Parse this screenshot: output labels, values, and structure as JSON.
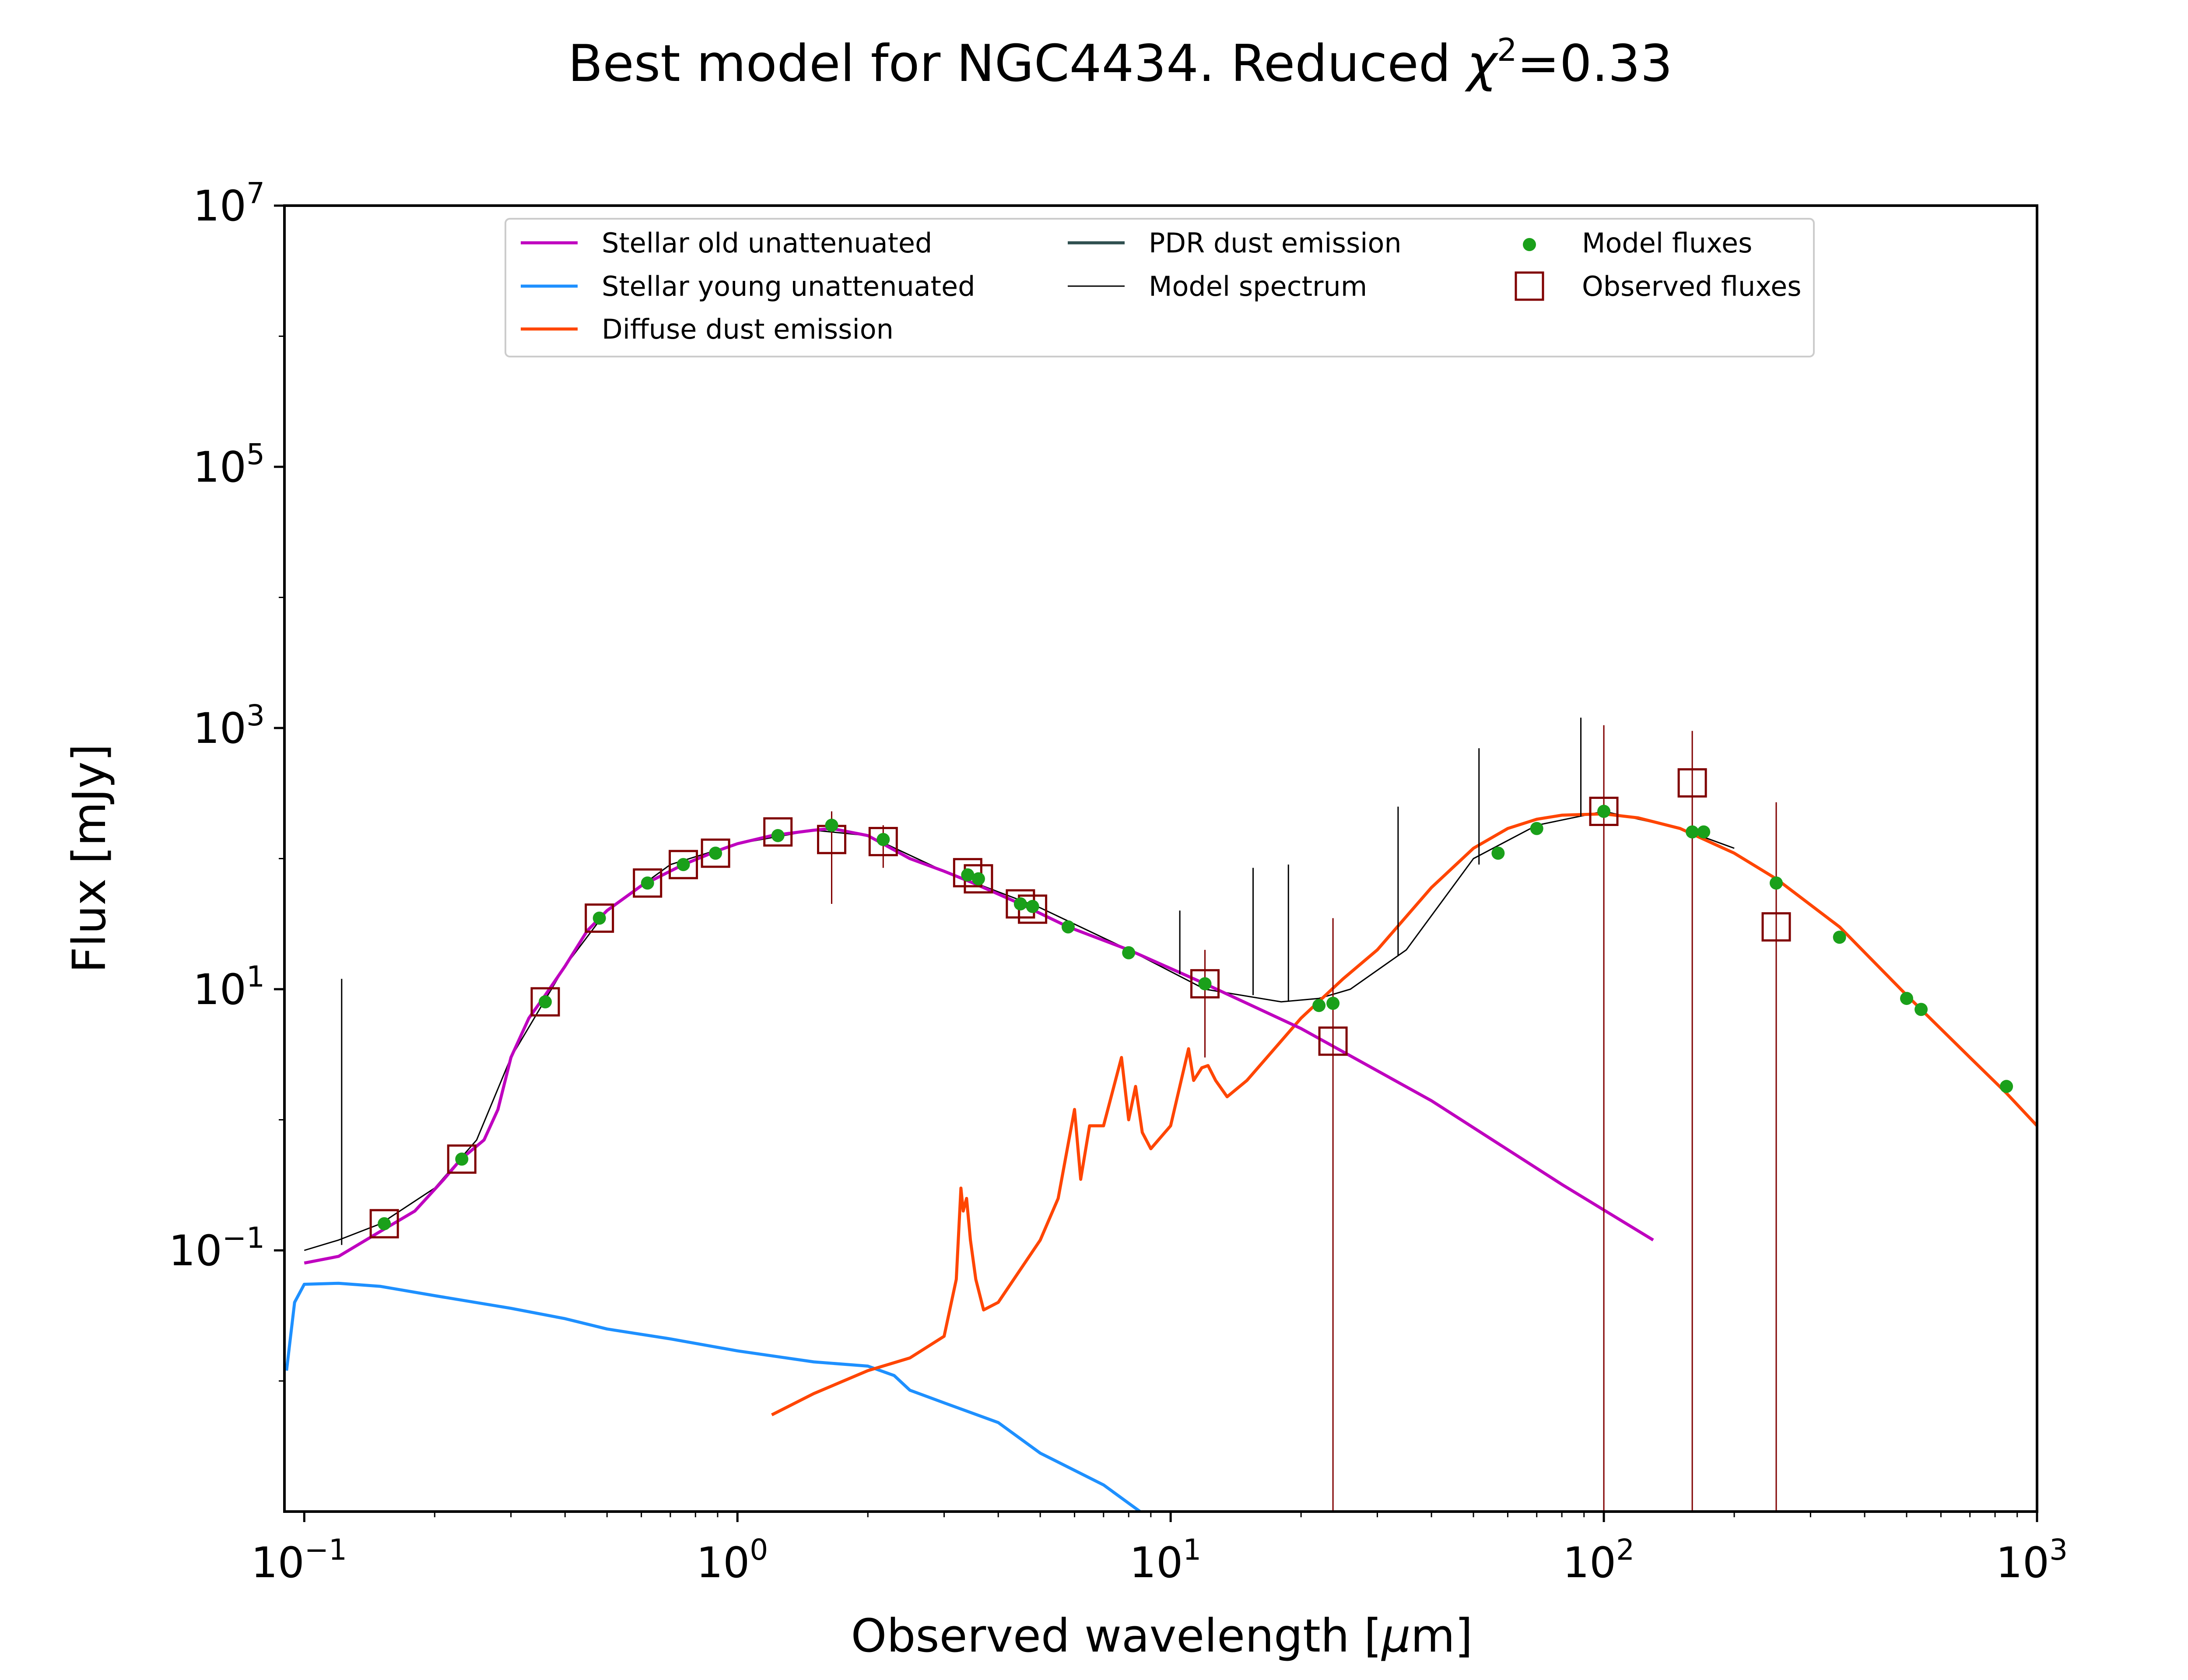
{
  "chart_data": {
    "type": "line",
    "title_main": "Best model for NGC4434. Reduced ",
    "title_chi": "χ",
    "title_exp": "2",
    "title_value": "=0.33",
    "xlabel_prefix": "Observed wavelength [",
    "xlabel_mu": "μ",
    "xlabel_suffix": "m]",
    "ylabel": "Flux [mJy]",
    "xscale": "log",
    "yscale": "log",
    "xlim": [
      0.09,
      1000
    ],
    "ylim": [
      0.001,
      10000000
    ],
    "x_ticks": [
      {
        "base": "10",
        "exp": "−1",
        "value": 0.1
      },
      {
        "base": "10",
        "exp": "0",
        "value": 1
      },
      {
        "base": "10",
        "exp": "1",
        "value": 10
      },
      {
        "base": "10",
        "exp": "2",
        "value": 100
      },
      {
        "base": "10",
        "exp": "3",
        "value": 1000
      }
    ],
    "y_ticks": [
      {
        "base": "10",
        "exp": "−1",
        "value": 0.1
      },
      {
        "base": "10",
        "exp": "1",
        "value": 10
      },
      {
        "base": "10",
        "exp": "3",
        "value": 1000
      },
      {
        "base": "10",
        "exp": "5",
        "value": 100000
      },
      {
        "base": "10",
        "exp": "7",
        "value": 10000000
      }
    ],
    "legend": {
      "placement": "top-center",
      "entries": [
        {
          "label": "Stellar old unattenuated",
          "kind": "line",
          "color": "#bf00bf"
        },
        {
          "label": "Stellar young unattenuated",
          "kind": "line",
          "color": "#1e90ff"
        },
        {
          "label": "Diffuse dust emission",
          "kind": "line",
          "color": "#ff4500"
        },
        {
          "label": "PDR dust emission",
          "kind": "line",
          "color": "#2f4f4f"
        },
        {
          "label": "Model spectrum",
          "kind": "thin-line",
          "color": "#000000"
        },
        {
          "label": "Model fluxes",
          "kind": "dot",
          "color": "#1aa01a"
        },
        {
          "label": "Observed fluxes",
          "kind": "square",
          "color": "#800000"
        }
      ]
    },
    "series": [
      {
        "name": "Stellar old unattenuated",
        "color": "#bf00bf",
        "x": [
          0.1,
          0.12,
          0.15,
          0.18,
          0.21,
          0.23,
          0.26,
          0.28,
          0.3,
          0.33,
          0.36,
          0.4,
          0.45,
          0.5,
          0.6,
          0.75,
          0.9,
          1.0,
          1.2,
          1.5,
          1.65,
          2.0,
          2.5,
          3.0,
          3.5,
          4.5,
          5.8,
          8.0,
          12,
          20,
          40,
          80,
          130
        ],
        "y": [
          0.08,
          0.09,
          0.14,
          0.2,
          0.35,
          0.5,
          0.7,
          1.2,
          3,
          6,
          9,
          15,
          28,
          40,
          62,
          90,
          115,
          130,
          150,
          165,
          170,
          150,
          100,
          80,
          65,
          45,
          30,
          20,
          11,
          5,
          1.4,
          0.32,
          0.12
        ]
      },
      {
        "name": "Stellar young unattenuated",
        "color": "#1e90ff",
        "x": [
          0.091,
          0.095,
          0.1,
          0.12,
          0.15,
          0.2,
          0.3,
          0.4,
          0.5,
          0.7,
          1.0,
          1.5,
          2.0,
          2.3,
          2.5,
          3.0,
          4.0,
          5.0,
          7.0,
          8.5
        ],
        "y": [
          0.012,
          0.04,
          0.055,
          0.056,
          0.053,
          0.045,
          0.036,
          0.03,
          0.025,
          0.021,
          0.017,
          0.014,
          0.013,
          0.011,
          0.0085,
          0.0068,
          0.0048,
          0.0028,
          0.0016,
          0.001
        ]
      },
      {
        "name": "Diffuse dust emission",
        "color": "#ff4500",
        "x": [
          1.2,
          1.5,
          2.0,
          2.5,
          3.0,
          3.2,
          3.28,
          3.32,
          3.38,
          3.45,
          3.55,
          3.7,
          4.0,
          5.0,
          5.5,
          6.0,
          6.2,
          6.5,
          7.0,
          7.7,
          8.0,
          8.3,
          8.6,
          9.0,
          10.0,
          11.0,
          11.3,
          11.8,
          12.2,
          12.7,
          13.5,
          15.0,
          20.0,
          25.0,
          30.0,
          40.0,
          50.0,
          60.0,
          70.0,
          80.0,
          100.0,
          120.0,
          150.0,
          200.0,
          250.0,
          350.0,
          500.0,
          700.0,
          850.0,
          1000.0
        ],
        "y": [
          0.0055,
          0.008,
          0.012,
          0.015,
          0.022,
          0.06,
          0.3,
          0.2,
          0.25,
          0.12,
          0.06,
          0.035,
          0.04,
          0.12,
          0.25,
          1.2,
          0.35,
          0.9,
          0.9,
          3.0,
          1.0,
          1.8,
          0.8,
          0.6,
          0.9,
          3.5,
          2.0,
          2.5,
          2.6,
          2.0,
          1.5,
          2.0,
          6.0,
          12.0,
          20.0,
          60.0,
          120.0,
          170.0,
          200.0,
          215.0,
          220.0,
          205.0,
          170.0,
          110.0,
          70.0,
          30.0,
          9.0,
          3.0,
          1.6,
          0.9
        ]
      },
      {
        "name": "Model spectrum",
        "color": "#000000",
        "x": [
          0.1,
          0.12,
          0.15,
          0.2,
          0.25,
          0.3,
          0.4,
          0.5,
          0.7,
          1.0,
          1.5,
          2.0,
          3.0,
          5.0,
          8.0,
          12.0,
          18.0,
          22.0,
          26.0,
          35.0,
          50.0,
          70.0,
          100.0,
          150.0,
          200.0
        ],
        "y": [
          0.1,
          0.12,
          0.16,
          0.3,
          0.7,
          3,
          15,
          40,
          90,
          130,
          165,
          150,
          80,
          42,
          20,
          10,
          8,
          8.5,
          10,
          20,
          100,
          180,
          230,
          170,
          120
        ]
      }
    ],
    "model_spectrum_lines": [
      {
        "x": 0.122,
        "top": 12,
        "base": 0.11
      },
      {
        "x": 1.65,
        "top": 230,
        "base": 170
      },
      {
        "x": 10.5,
        "top": 40,
        "base": 13
      },
      {
        "x": 15.5,
        "top": 85,
        "base": 9
      },
      {
        "x": 18.7,
        "top": 90,
        "base": 8
      },
      {
        "x": 33.5,
        "top": 250,
        "base": 18
      },
      {
        "x": 51.5,
        "top": 700,
        "base": 90
      },
      {
        "x": 88.5,
        "top": 1200,
        "base": 210
      }
    ],
    "model_fluxes": {
      "color": "#1aa01a",
      "x": [
        0.153,
        0.231,
        0.36,
        0.48,
        0.62,
        0.75,
        0.89,
        1.24,
        1.65,
        2.17,
        3.4,
        3.6,
        4.5,
        4.8,
        5.8,
        8.0,
        12.0,
        22.0,
        23.7,
        57.0,
        70.0,
        100.0,
        160.0,
        170.0,
        250.0,
        350.0,
        500.0,
        540.0,
        850.0
      ],
      "y": [
        0.16,
        0.5,
        8,
        35,
        65,
        90,
        110,
        150,
        180,
        140,
        75,
        70,
        45,
        43,
        30,
        19,
        11,
        7.5,
        7.8,
        110,
        170,
        230,
        160,
        160,
        65,
        25,
        8.5,
        7,
        1.8
      ]
    },
    "observed_fluxes": {
      "color": "#800000",
      "points": [
        {
          "x": 0.153,
          "y": 0.16
        },
        {
          "x": 0.231,
          "y": 0.5
        },
        {
          "x": 0.36,
          "y": 8
        },
        {
          "x": 0.48,
          "y": 35
        },
        {
          "x": 0.62,
          "y": 65
        },
        {
          "x": 0.75,
          "y": 90
        },
        {
          "x": 0.89,
          "y": 110
        },
        {
          "x": 1.24,
          "y": 160
        },
        {
          "x": 1.65,
          "y": 140,
          "err_low": 45,
          "err_high": 230
        },
        {
          "x": 2.17,
          "y": 135,
          "err_low": 85,
          "err_high": 180
        },
        {
          "x": 3.4,
          "y": 78
        },
        {
          "x": 3.6,
          "y": 70
        },
        {
          "x": 4.5,
          "y": 45
        },
        {
          "x": 4.8,
          "y": 41
        },
        {
          "x": 12.0,
          "y": 11,
          "err_low": 3,
          "err_high": 20
        },
        {
          "x": 23.7,
          "y": 4,
          "err_low": 0.001,
          "err_high": 35
        },
        {
          "x": 100.0,
          "y": 230,
          "err_low": 0.001,
          "err_high": 1050
        },
        {
          "x": 160.0,
          "y": 380,
          "err_low": 0.001,
          "err_high": 950
        },
        {
          "x": 250.0,
          "y": 30,
          "err_low": 0.001,
          "err_high": 270
        }
      ]
    }
  }
}
